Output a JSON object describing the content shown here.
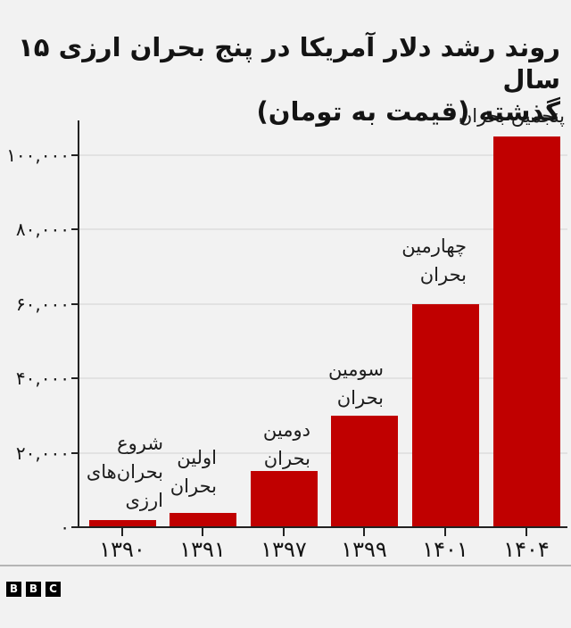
{
  "title": {
    "line1": "روند رشد دلار آمریکا در پنج بحران ارزی ۱۵ سال",
    "line2": "گذشته (قیمت به تومان)"
  },
  "chart_data": {
    "type": "bar",
    "title": "روند رشد دلار آمریکا در پنج بحران ارزی ۱۵ سال گذشته (قیمت به تومان)",
    "direction": "rtl",
    "unit": "توم ان (toman)",
    "categories": [
      "۱۳۹۰",
      "۱۳۹۱",
      "۱۳۹۷",
      "۱۳۹۹",
      "۱۴۰۱",
      "۱۴۰۴"
    ],
    "values": [
      1800,
      3800,
      15000,
      30000,
      60000,
      105000
    ],
    "bar_color": "#c00000",
    "annotations": [
      {
        "lines": [
          "شروع",
          "بحران‌های",
          "ارزی"
        ]
      },
      {
        "lines": [
          "اولین",
          "بحران"
        ]
      },
      {
        "lines": [
          "دومین",
          "بحران"
        ]
      },
      {
        "lines": [
          "سومین",
          "بحران"
        ]
      },
      {
        "lines": [
          "چهارمین",
          "بحران"
        ]
      },
      {
        "lines": [
          "پنجمین بحران"
        ]
      }
    ],
    "y_axis": {
      "ticks": [
        {
          "label": "۱۰۰,۰۰۰",
          "value": 100000
        },
        {
          "label": "۸۰,۰۰۰",
          "value": 80000
        },
        {
          "label": "۶۰,۰۰۰",
          "value": 60000
        },
        {
          "label": "۴۰,۰۰۰",
          "value": 40000
        },
        {
          "label": "۲۰,۰۰۰",
          "value": 20000
        },
        {
          "label": "۰",
          "value": 0
        }
      ],
      "range": [
        0,
        109000
      ]
    },
    "grid": true,
    "legend": "none"
  },
  "footer": {
    "logo": [
      "B",
      "B",
      "C"
    ]
  },
  "colors": {
    "background": "#f2f2f2",
    "bar": "#c00000",
    "text": "#141414",
    "axis": "#222222",
    "gridline": "#e2e2e2",
    "divider": "#b5b5b5",
    "logo_bg": "#000000",
    "logo_text": "#ffffff"
  }
}
